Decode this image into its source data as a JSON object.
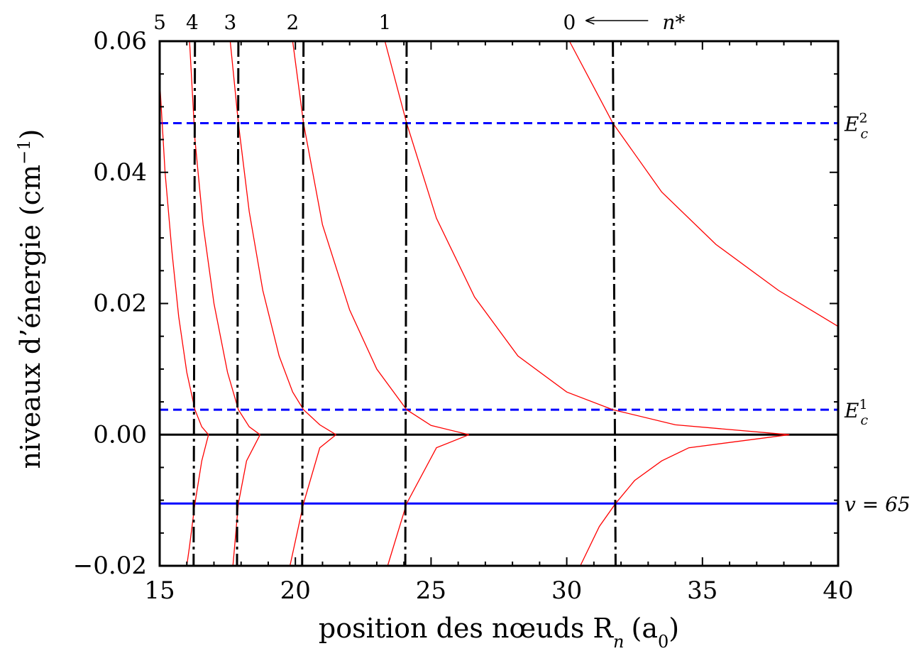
{
  "chart_data": {
    "type": "line",
    "xlabel": "position des nœuds R",
    "xlabel_sub": "n",
    "xlabel_unit": "(a",
    "xlabel_unit_sub": "0",
    "xlabel_unit_close": ")",
    "ylabel": "niveaux d’énergie (cm",
    "ylabel_sup": "−1",
    "ylabel_close": ")",
    "xlim": [
      15,
      40
    ],
    "ylim": [
      -0.02,
      0.06
    ],
    "x_ticks": [
      15,
      20,
      25,
      30,
      35,
      40
    ],
    "x_tick_labels": [
      "15",
      "20",
      "25",
      "30",
      "35",
      "40"
    ],
    "y_ticks": [
      -0.02,
      0.0,
      0.02,
      0.04,
      0.06
    ],
    "y_tick_labels": [
      "−0.02",
      "0.00",
      "0.02",
      "0.04",
      "0.06"
    ],
    "grid": false,
    "colors": {
      "curves": "#ff0000",
      "levels": "#0000ff",
      "nodes": "#000000",
      "zero": "#000000"
    },
    "node_labels": [
      "5",
      "4",
      "3",
      "2",
      "1",
      "0"
    ],
    "node_label_x": [
      15.0,
      16.2,
      17.6,
      19.9,
      23.3,
      30.1
    ],
    "n_star_label": "n*",
    "n_star_arrow_x": [
      30.7,
      33.0
    ],
    "horizontal_levels": [
      {
        "label": "E",
        "sub": "c",
        "sup": "2",
        "y": 0.0475,
        "style": "dashed"
      },
      {
        "label": "E",
        "sub": "c",
        "sup": "1",
        "y": 0.0038,
        "style": "dashed"
      },
      {
        "label": "v = 65",
        "y": -0.0105,
        "style": "solid"
      }
    ],
    "vertical_nodes": [
      {
        "x_top": 16.3,
        "x_bottom": 16.25
      },
      {
        "x_top": 17.9,
        "x_bottom": 17.85
      },
      {
        "x_top": 20.3,
        "x_bottom": 20.25
      },
      {
        "x_top": 24.1,
        "x_bottom": 24.05
      },
      {
        "x_top": 31.7,
        "x_bottom": 31.8
      }
    ],
    "series_upper": [
      {
        "x": [
          15.0,
          15.2,
          15.45,
          15.7,
          16.0,
          16.3,
          16.55,
          16.8
        ],
        "y": [
          0.054,
          0.04,
          0.028,
          0.018,
          0.0095,
          0.0038,
          0.0012,
          0.0
        ]
      },
      {
        "x": [
          16.1,
          16.3,
          16.6,
          17.0,
          17.5,
          17.9,
          18.3,
          18.7
        ],
        "y": [
          0.06,
          0.045,
          0.032,
          0.02,
          0.0095,
          0.0038,
          0.0012,
          0.0
        ]
      },
      {
        "x": [
          17.6,
          17.9,
          18.3,
          18.8,
          19.4,
          19.9,
          20.3,
          20.9,
          21.5
        ],
        "y": [
          0.06,
          0.0475,
          0.034,
          0.022,
          0.012,
          0.0065,
          0.0038,
          0.0015,
          0.0
        ]
      },
      {
        "x": [
          19.9,
          20.3,
          21.0,
          22.0,
          23.0,
          24.1,
          25.0,
          26.4
        ],
        "y": [
          0.06,
          0.0475,
          0.032,
          0.019,
          0.01,
          0.0038,
          0.0014,
          0.0
        ]
      },
      {
        "x": [
          23.3,
          24.1,
          25.2,
          26.6,
          28.2,
          30.0,
          31.7,
          34.0,
          38.2
        ],
        "y": [
          0.06,
          0.0475,
          0.033,
          0.021,
          0.012,
          0.0065,
          0.0038,
          0.0015,
          0.0
        ]
      },
      {
        "x": [
          30.1,
          31.7,
          33.5,
          35.5,
          37.8,
          40.0
        ],
        "y": [
          0.06,
          0.0475,
          0.037,
          0.029,
          0.022,
          0.0165
        ]
      }
    ],
    "series_lower": [
      {
        "x": [
          16.8,
          16.55,
          16.3,
          16.1,
          16.0
        ],
        "y": [
          0.0,
          -0.004,
          -0.0105,
          -0.017,
          -0.02
        ]
      },
      {
        "x": [
          18.7,
          18.2,
          17.9,
          17.7
        ],
        "y": [
          0.0,
          -0.004,
          -0.0105,
          -0.02
        ]
      },
      {
        "x": [
          21.5,
          20.9,
          20.3,
          19.8
        ],
        "y": [
          0.0,
          -0.002,
          -0.0105,
          -0.02
        ]
      },
      {
        "x": [
          26.4,
          25.2,
          24.1,
          23.4
        ],
        "y": [
          0.0,
          -0.002,
          -0.0105,
          -0.02
        ]
      },
      {
        "x": [
          38.2,
          34.5,
          33.5,
          32.5,
          31.8,
          31.2,
          30.5
        ],
        "y": [
          0.0,
          -0.002,
          -0.004,
          -0.007,
          -0.0105,
          -0.014,
          -0.02
        ]
      }
    ]
  }
}
